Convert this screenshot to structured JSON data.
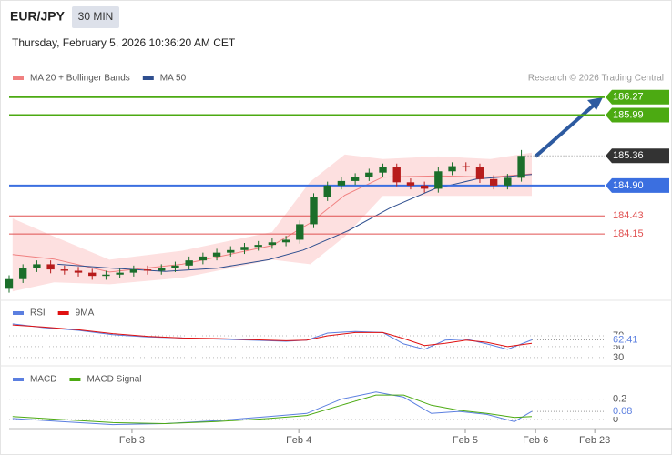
{
  "chart_data": [
    {
      "type": "candlestick",
      "title": "EUR/JPY",
      "timeframe": "30 MIN",
      "subtitle": "Thursday, February 5, 2026 10:36:20 AM CET",
      "source": "Research © 2026 Trading Central",
      "xlim": [
        0,
        171
      ],
      "ylim": [
        183.15,
        186.9
      ],
      "xticks": [
        {
          "value": 35.5,
          "label": "Feb 3"
        },
        {
          "value": 83.7,
          "label": "Feb 4"
        },
        {
          "value": 131.8,
          "label": "Feb 5"
        },
        {
          "value": 152.1,
          "label": "Feb 6"
        },
        {
          "value": 169.2,
          "label": "Feb 23"
        }
      ],
      "up_color": "#1b6e2a",
      "down_color": "#b71c1c",
      "x": [
        0,
        4,
        8,
        12,
        16,
        20,
        24,
        28,
        32,
        36,
        40,
        44,
        48,
        52,
        56,
        60,
        64,
        68,
        72,
        76,
        80,
        84,
        88,
        92,
        96,
        100,
        104,
        108,
        112,
        116,
        120,
        124,
        128,
        132,
        136,
        140,
        144,
        148
      ],
      "open": [
        183.3,
        183.45,
        183.62,
        183.68,
        183.6,
        183.58,
        183.55,
        183.5,
        183.52,
        183.55,
        183.6,
        183.58,
        183.62,
        183.66,
        183.74,
        183.8,
        183.86,
        183.9,
        183.95,
        183.98,
        184.02,
        184.06,
        184.3,
        184.72,
        184.9,
        184.97,
        185.03,
        185.1,
        185.18,
        184.95,
        184.9,
        184.85,
        185.12,
        185.2,
        185.18,
        185.0,
        184.9,
        185.02
      ],
      "high": [
        183.51,
        183.68,
        183.74,
        183.74,
        183.66,
        183.64,
        183.61,
        183.58,
        183.61,
        183.66,
        183.66,
        183.68,
        183.72,
        183.8,
        183.86,
        183.92,
        183.96,
        184.01,
        184.04,
        184.08,
        184.12,
        184.36,
        184.78,
        184.96,
        185.03,
        185.09,
        185.16,
        185.24,
        185.24,
        185.01,
        184.96,
        185.18,
        185.26,
        185.26,
        185.24,
        185.06,
        185.08,
        185.45
      ],
      "low": [
        183.24,
        183.39,
        183.56,
        183.54,
        183.52,
        183.49,
        183.44,
        183.44,
        183.46,
        183.49,
        183.52,
        183.52,
        183.56,
        183.6,
        183.68,
        183.74,
        183.8,
        183.84,
        183.89,
        183.92,
        183.96,
        184.0,
        184.24,
        184.66,
        184.84,
        184.91,
        184.97,
        185.04,
        184.89,
        184.84,
        184.79,
        184.79,
        185.06,
        185.12,
        184.94,
        184.84,
        184.84,
        184.96
      ],
      "close": [
        183.45,
        183.62,
        183.68,
        183.6,
        183.58,
        183.55,
        183.5,
        183.52,
        183.55,
        183.6,
        183.58,
        183.62,
        183.66,
        183.74,
        183.8,
        183.86,
        183.9,
        183.95,
        183.98,
        184.02,
        184.06,
        184.3,
        184.72,
        184.9,
        184.97,
        185.03,
        185.1,
        185.18,
        184.95,
        184.9,
        184.85,
        185.12,
        185.2,
        185.18,
        185.0,
        184.9,
        185.02,
        185.36
      ],
      "last_color": "#333333",
      "band": {
        "name": "MA 20 + Bollinger Bands",
        "color": "#f08080",
        "fill": "#fde0e0",
        "x": [
          1,
          13,
          29,
          50,
          76,
          87,
          97,
          108,
          124,
          139,
          151
        ],
        "upper": [
          184.39,
          184.11,
          183.75,
          183.89,
          184.18,
          184.96,
          185.38,
          185.31,
          185.35,
          185.31,
          185.41
        ],
        "middle": [
          183.83,
          183.76,
          183.56,
          183.68,
          183.97,
          184.32,
          184.75,
          185.03,
          185.05,
          185.03,
          185.08
        ],
        "lower": [
          183.26,
          183.4,
          183.37,
          183.47,
          183.75,
          183.68,
          184.11,
          184.74,
          184.74,
          184.74,
          184.74
        ]
      },
      "series": [
        {
          "name": "MA 50",
          "color": "#2f4f8f",
          "x": [
            14,
            30,
            45,
            60,
            75,
            85,
            98,
            110,
            123,
            135,
            151
          ],
          "values": [
            183.68,
            183.62,
            183.57,
            183.62,
            183.75,
            183.9,
            184.2,
            184.55,
            184.85,
            185.0,
            185.07
          ]
        }
      ],
      "levels": [
        {
          "value": 186.27,
          "color": "#4caa12",
          "boxed": true
        },
        {
          "value": 185.99,
          "color": "#4caa12",
          "boxed": true
        },
        {
          "value": 184.9,
          "label": "184.90",
          "color": "#3b6fe0",
          "boxed": true
        },
        {
          "value": 184.43,
          "color": "#e05050",
          "boxed": false
        },
        {
          "value": 184.15,
          "color": "#e05050",
          "boxed": false
        }
      ]
    },
    {
      "type": "line",
      "xlim": [
        0,
        171
      ],
      "ylim": [
        18,
        127
      ],
      "yticks": [
        30,
        50,
        70
      ],
      "series": [
        {
          "name": "RSI",
          "color": "#5b7fe0",
          "x": [
            1,
            10,
            20,
            30,
            40,
            50,
            60,
            70,
            80,
            86,
            92,
            100,
            108,
            114,
            120,
            126,
            132,
            138,
            144,
            151
          ],
          "values": [
            92,
            85,
            80,
            72,
            68,
            66,
            64,
            62,
            60,
            62,
            75,
            78,
            76,
            55,
            45,
            62,
            64,
            55,
            45,
            62.41
          ]
        },
        {
          "name": "9MA",
          "color": "#e01010",
          "x": [
            1,
            10,
            20,
            30,
            40,
            50,
            60,
            70,
            80,
            86,
            92,
            100,
            108,
            114,
            120,
            126,
            132,
            138,
            144,
            151
          ],
          "values": [
            90,
            86,
            81,
            74,
            69,
            66,
            65,
            63,
            61,
            62,
            70,
            76,
            76,
            65,
            52,
            56,
            62,
            58,
            50,
            56
          ]
        }
      ]
    },
    {
      "type": "line",
      "xlim": [
        0,
        171
      ],
      "ylim": [
        -0.08,
        0.5
      ],
      "yticks": [
        0.2,
        0
      ],
      "series": [
        {
          "name": "MACD",
          "color": "#5b7fe0",
          "x": [
            1,
            15,
            30,
            45,
            60,
            75,
            86,
            96,
            106,
            114,
            122,
            130,
            138,
            146,
            151
          ],
          "values": [
            0.01,
            -0.02,
            -0.05,
            -0.04,
            -0.01,
            0.03,
            0.06,
            0.2,
            0.27,
            0.22,
            0.06,
            0.08,
            0.05,
            -0.02,
            0.08
          ]
        },
        {
          "name": "MACD Signal",
          "color": "#4caa12",
          "x": [
            1,
            15,
            30,
            45,
            60,
            75,
            86,
            96,
            106,
            114,
            122,
            130,
            138,
            146,
            151
          ],
          "values": [
            0.03,
            0.0,
            -0.03,
            -0.04,
            -0.02,
            0.01,
            0.04,
            0.14,
            0.24,
            0.24,
            0.14,
            0.09,
            0.06,
            0.02,
            0.03
          ]
        }
      ]
    }
  ]
}
